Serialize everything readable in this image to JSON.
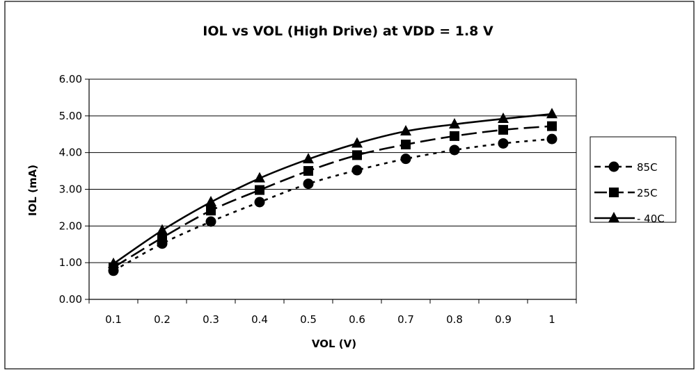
{
  "chart_data": {
    "type": "line",
    "title": "IOL vs VOL (High Drive) at VDD = 1.8 V",
    "xlabel": "VOL (V)",
    "ylabel": "IOL (mA)",
    "categories": [
      "0.1",
      "0.2",
      "0.3",
      "0.4",
      "0.5",
      "0.6",
      "0.7",
      "0.8",
      "0.9",
      "1"
    ],
    "ylim": [
      0,
      6
    ],
    "yticks": [
      "0.00",
      "1.00",
      "2.00",
      "3.00",
      "4.00",
      "5.00",
      "6.00"
    ],
    "grid": "horizontal",
    "legend_position": "right",
    "series": [
      {
        "name": "85C",
        "marker": "circle",
        "dash": "dotted",
        "color": "#000000",
        "values": [
          0.78,
          1.52,
          2.12,
          2.65,
          3.15,
          3.52,
          3.83,
          4.07,
          4.25,
          4.37
        ]
      },
      {
        "name": "25C",
        "marker": "square",
        "dash": "long-dash",
        "color": "#000000",
        "values": [
          0.87,
          1.68,
          2.42,
          2.98,
          3.5,
          3.93,
          4.22,
          4.45,
          4.62,
          4.72
        ]
      },
      {
        "name": "- 40C",
        "marker": "triangle",
        "dash": "solid",
        "color": "#000000",
        "values": [
          0.97,
          1.88,
          2.65,
          3.3,
          3.82,
          4.25,
          4.58,
          4.77,
          4.92,
          5.05
        ]
      }
    ]
  }
}
